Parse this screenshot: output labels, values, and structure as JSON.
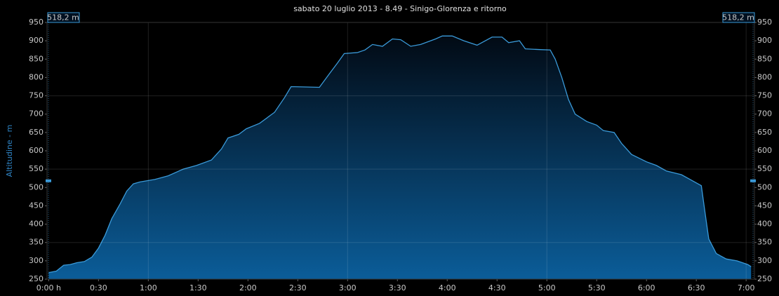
{
  "chart_data": {
    "type": "area",
    "title": "sabato 20 luglio 2013 - 8.49 - Sinigo-Glorenza e ritorno",
    "y_label": "Altitudine - m",
    "color": "#3a9ad9",
    "x": [
      0,
      4.6,
      9,
      13,
      17,
      21.5,
      26,
      30,
      34,
      38,
      43,
      47,
      51,
      55,
      64,
      72,
      81,
      89,
      98,
      104,
      108,
      114.5,
      119,
      127,
      136,
      142,
      146,
      155,
      163,
      169,
      174,
      178,
      186,
      190.5,
      195,
      201,
      207,
      212,
      218,
      224,
      233,
      237,
      243,
      250,
      258,
      267,
      273,
      277,
      283.5,
      287,
      296,
      302,
      305,
      309,
      313,
      317,
      324,
      330,
      334,
      340.5,
      345,
      351,
      360,
      366,
      372,
      381,
      389,
      393,
      395,
      397.5,
      402,
      408,
      414.5,
      421,
      423
    ],
    "values": [
      268,
      272,
      288,
      290,
      295,
      298,
      310,
      335,
      370,
      415,
      455,
      490,
      510,
      515,
      522,
      532,
      550,
      560,
      575,
      605,
      635,
      645,
      660,
      675,
      705,
      745,
      775,
      774,
      773,
      810,
      840,
      865,
      868,
      875,
      890,
      885,
      905,
      903,
      885,
      890,
      905,
      913,
      913,
      900,
      888,
      910,
      910,
      895,
      900,
      878,
      876,
      875,
      850,
      800,
      740,
      700,
      680,
      670,
      655,
      650,
      620,
      590,
      570,
      560,
      545,
      535,
      515,
      505,
      440,
      360,
      320,
      305,
      300,
      290,
      284
    ],
    "xlim": [
      -1,
      425
    ],
    "ylim": [
      250,
      950
    ],
    "xticks": [
      {
        "value": 0,
        "label": "0:00 h"
      },
      {
        "value": 30,
        "label": "0:30"
      },
      {
        "value": 60,
        "label": "1:00"
      },
      {
        "value": 90,
        "label": "1:30"
      },
      {
        "value": 120,
        "label": "2:00"
      },
      {
        "value": 150,
        "label": "2:30"
      },
      {
        "value": 180,
        "label": "3:00"
      },
      {
        "value": 210,
        "label": "3:30"
      },
      {
        "value": 240,
        "label": "4:00"
      },
      {
        "value": 270,
        "label": "4:30"
      },
      {
        "value": 300,
        "label": "5:00"
      },
      {
        "value": 330,
        "label": "5:30"
      },
      {
        "value": 360,
        "label": "6:00"
      },
      {
        "value": 390,
        "label": "6:30"
      },
      {
        "value": 420,
        "label": "7:00"
      }
    ],
    "yticks": [
      250,
      300,
      350,
      400,
      450,
      500,
      550,
      600,
      650,
      700,
      750,
      800,
      850,
      900,
      950
    ],
    "grid": true,
    "cursor": {
      "value": 518.2,
      "label": "518,2 m"
    }
  }
}
